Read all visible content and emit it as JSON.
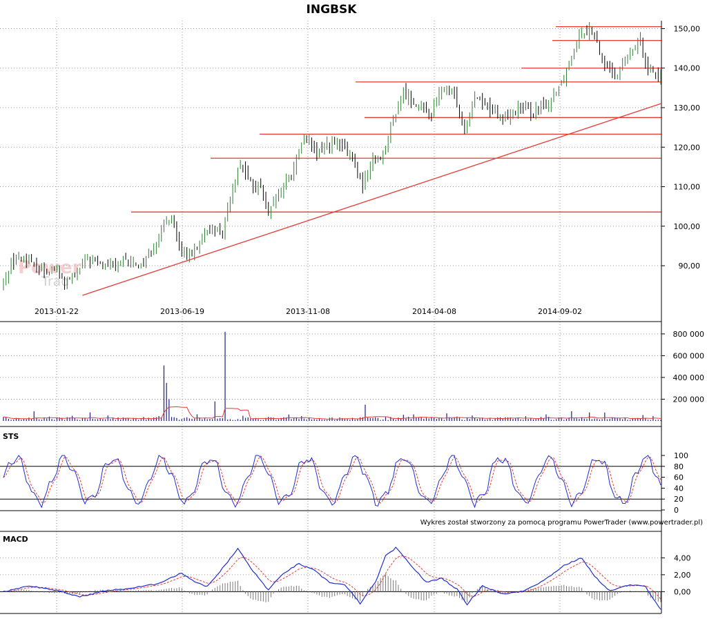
{
  "app": {
    "title": "INGBSK",
    "credit": "Wykres został stworzony za pomocą programu PowerTrader (www.powertrader.pl)",
    "watermark": "PowerTrader"
  },
  "colors": {
    "up": "#2e7d32",
    "down": "#000000",
    "support": "#e53935",
    "volume": "#1a1a8c",
    "volume_ma": "#e53935",
    "sts_k": "#1f2bd1",
    "sts_d": "#e53935",
    "macd": "#1f2bd1",
    "signal": "#e53935",
    "hist": "#777777",
    "grid": "#9a9a9a"
  },
  "chart_data": [
    {
      "type": "candlestick",
      "name": "price",
      "title": "INGBSK",
      "x_ticks": [
        "2013-01-22",
        "2013-06-19",
        "2013-11-08",
        "2014-04-08",
        "2014-09-02"
      ],
      "y_ticks": [
        "90,00",
        "100,00",
        "110,00",
        "120,00",
        "130,00",
        "140,00",
        "150,00"
      ],
      "ylim": [
        82.5,
        152
      ],
      "close_path": [
        [
          0,
          85
        ],
        [
          3,
          91
        ],
        [
          8,
          92
        ],
        [
          14,
          89
        ],
        [
          20,
          89
        ],
        [
          24,
          86
        ],
        [
          28,
          87
        ],
        [
          33,
          92
        ],
        [
          38,
          90
        ],
        [
          44,
          90
        ],
        [
          48,
          91
        ],
        [
          54,
          90
        ],
        [
          60,
          96
        ],
        [
          66,
          103
        ],
        [
          70,
          92
        ],
        [
          76,
          94
        ],
        [
          82,
          100
        ],
        [
          86,
          98
        ],
        [
          90,
          110
        ],
        [
          93,
          116
        ],
        [
          98,
          110
        ],
        [
          101,
          110
        ],
        [
          104,
          103
        ],
        [
          108,
          108
        ],
        [
          113,
          113
        ],
        [
          118,
          123
        ],
        [
          123,
          118
        ],
        [
          127,
          121
        ],
        [
          133,
          120
        ],
        [
          137,
          117
        ],
        [
          141,
          110
        ],
        [
          145,
          117
        ],
        [
          149,
          118
        ],
        [
          153,
          127
        ],
        [
          157,
          134
        ],
        [
          160,
          132
        ],
        [
          164,
          130
        ],
        [
          168,
          128
        ],
        [
          172,
          135
        ],
        [
          177,
          133
        ],
        [
          181,
          125
        ],
        [
          185,
          133
        ],
        [
          191,
          130
        ],
        [
          196,
          127
        ],
        [
          202,
          130
        ],
        [
          208,
          129
        ],
        [
          214,
          131
        ],
        [
          220,
          138
        ],
        [
          226,
          149
        ],
        [
          231,
          150
        ],
        [
          235,
          142
        ],
        [
          240,
          138
        ],
        [
          245,
          143
        ],
        [
          250,
          147
        ],
        [
          253,
          140
        ],
        [
          257,
          138
        ]
      ],
      "horizontal_levels": [
        150.5,
        147,
        140,
        136.5,
        127.5,
        123.3,
        117.2,
        103.6
      ],
      "trendline": {
        "from": [
          31,
          82.5
        ],
        "to": [
          258,
          131
        ]
      }
    },
    {
      "type": "bar",
      "name": "volume",
      "y_ticks": [
        "200 000",
        "400 000",
        "600 000",
        "800 000"
      ],
      "ylim": [
        0,
        850000
      ],
      "spikes": [
        {
          "x": 63,
          "value": 510000
        },
        {
          "x": 64,
          "value": 350000
        },
        {
          "x": 65,
          "value": 200000
        },
        {
          "x": 87,
          "value": 820000
        },
        {
          "x": 83,
          "value": 180000
        },
        {
          "x": 142,
          "value": 150000
        },
        {
          "x": 223,
          "value": 90000
        }
      ]
    },
    {
      "type": "line",
      "name": "STS",
      "title": "STS",
      "y_ticks": [
        "0",
        "20",
        "40",
        "60",
        "80",
        "100"
      ],
      "ylim": [
        0,
        100
      ],
      "levels": [
        20,
        80
      ]
    },
    {
      "type": "line",
      "name": "MACD",
      "title": "MACD",
      "y_ticks": [
        "0,00",
        "2,00",
        "4,00"
      ],
      "ylim": [
        -2.5,
        5.5
      ],
      "zero_line": 0,
      "path": [
        [
          0,
          0
        ],
        [
          10,
          0.7
        ],
        [
          20,
          0.2
        ],
        [
          30,
          -0.6
        ],
        [
          40,
          0.1
        ],
        [
          50,
          0.4
        ],
        [
          60,
          0.9
        ],
        [
          70,
          2.2
        ],
        [
          75,
          1.2
        ],
        [
          80,
          0.6
        ],
        [
          88,
          3.5
        ],
        [
          92,
          5.1
        ],
        [
          98,
          2.4
        ],
        [
          104,
          0.2
        ],
        [
          110,
          2.2
        ],
        [
          116,
          3.3
        ],
        [
          122,
          2.5
        ],
        [
          128,
          1.1
        ],
        [
          134,
          0.8
        ],
        [
          140,
          -1.4
        ],
        [
          146,
          1.1
        ],
        [
          150,
          4.2
        ],
        [
          154,
          5.2
        ],
        [
          160,
          3.1
        ],
        [
          166,
          1.1
        ],
        [
          172,
          1.6
        ],
        [
          178,
          0.3
        ],
        [
          182,
          -1.5
        ],
        [
          188,
          0.7
        ],
        [
          196,
          -0.3
        ],
        [
          204,
          0.1
        ],
        [
          212,
          1.3
        ],
        [
          220,
          3.1
        ],
        [
          227,
          4.0
        ],
        [
          232,
          1.8
        ],
        [
          238,
          0.1
        ],
        [
          246,
          0.8
        ],
        [
          252,
          0.6
        ],
        [
          258,
          -2.1
        ]
      ]
    }
  ]
}
